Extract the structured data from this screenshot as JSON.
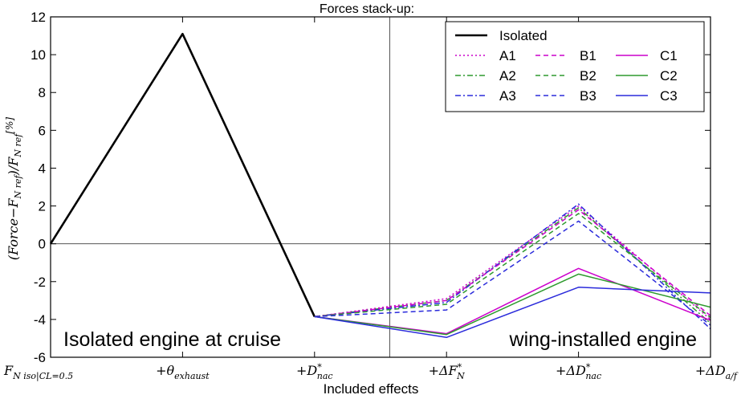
{
  "chart_data": {
    "type": "line",
    "title": "Forces stack-up:",
    "xlabel": "Included effects",
    "ylabel": "(Force−F_{N ref})/F_{N ref} [%]",
    "ylabel_parts": [
      "(Force−F",
      "N ref",
      ")/F",
      "N ref",
      "[%]"
    ],
    "categories": [
      "F_{N iso|CL=0.5}",
      "+θ_{exhaust}",
      "+D*_{nac}",
      "+ΔF*_{N}",
      "+ΔD*_{nac}",
      "+ΔD_{a/f}"
    ],
    "category_labels": [
      {
        "main": "F",
        "sub": "N iso|CL=0.5",
        "sup": ""
      },
      {
        "main": "+θ",
        "sub": "exhaust",
        "sup": ""
      },
      {
        "main": "+D",
        "sub": "nac",
        "sup": "*"
      },
      {
        "main": "+ΔF",
        "sub": "N",
        "sup": "*"
      },
      {
        "main": "+ΔD",
        "sub": "nac",
        "sup": "*"
      },
      {
        "main": "+ΔD",
        "sub": "a/f",
        "sup": ""
      }
    ],
    "ylim": [
      -6,
      12
    ],
    "yticks": [
      -6,
      -4,
      -2,
      0,
      2,
      4,
      6,
      8,
      10,
      12
    ],
    "grid": false,
    "legend_position": "top-right",
    "reference_lines": {
      "horizontal_y": 0,
      "vertical_x_index": 3.0
    },
    "series": [
      {
        "name": "Isolated",
        "style": "solid",
        "color": "#000000",
        "bold": true,
        "x": [
          0,
          1,
          2
        ],
        "values": [
          0,
          11.1,
          -3.85
        ]
      },
      {
        "name": "A1",
        "style": "dotted",
        "color": "#cc00cc",
        "x": [
          2,
          3,
          4,
          5
        ],
        "values": [
          -3.85,
          -2.9,
          2.0,
          -4.0
        ]
      },
      {
        "name": "A2",
        "style": "dashdot",
        "color": "#2e9a2e",
        "x": [
          2,
          3,
          4,
          5
        ],
        "values": [
          -3.85,
          -3.0,
          1.9,
          -4.2
        ]
      },
      {
        "name": "A3",
        "style": "dashdot",
        "color": "#2b2bdb",
        "x": [
          2,
          3,
          4,
          5
        ],
        "values": [
          -3.85,
          -3.1,
          2.1,
          -4.5
        ]
      },
      {
        "name": "B1",
        "style": "dashed",
        "color": "#cc00cc",
        "x": [
          2,
          3,
          4,
          5
        ],
        "values": [
          -3.85,
          -3.0,
          1.8,
          -3.8
        ]
      },
      {
        "name": "B2",
        "style": "dashed",
        "color": "#2e9a2e",
        "x": [
          2,
          3,
          4,
          5
        ],
        "values": [
          -3.85,
          -3.2,
          1.6,
          -3.9
        ]
      },
      {
        "name": "B3",
        "style": "dashed",
        "color": "#2b2bdb",
        "x": [
          2,
          3,
          4,
          5
        ],
        "values": [
          -3.85,
          -3.5,
          1.2,
          -4.3
        ]
      },
      {
        "name": "C1",
        "style": "solid",
        "color": "#cc00cc",
        "x": [
          2,
          3,
          4,
          5
        ],
        "values": [
          -3.85,
          -4.75,
          -1.3,
          -4.05
        ]
      },
      {
        "name": "C2",
        "style": "solid",
        "color": "#2e9a2e",
        "x": [
          2,
          3,
          4,
          5
        ],
        "values": [
          -3.85,
          -4.8,
          -1.6,
          -3.35
        ]
      },
      {
        "name": "C3",
        "style": "solid",
        "color": "#2b2bdb",
        "x": [
          2,
          3,
          4,
          5
        ],
        "values": [
          -3.85,
          -4.95,
          -2.3,
          -2.6
        ]
      }
    ],
    "legend_order": [
      [
        "Isolated"
      ],
      [
        "A1",
        "B1",
        "C1"
      ],
      [
        "A2",
        "B2",
        "C2"
      ],
      [
        "A3",
        "B3",
        "C3"
      ]
    ],
    "annotations": [
      {
        "text": "Isolated engine at cruise",
        "anchor": "bottom-left"
      },
      {
        "text": "wing-installed engine",
        "anchor": "bottom-right"
      }
    ]
  }
}
